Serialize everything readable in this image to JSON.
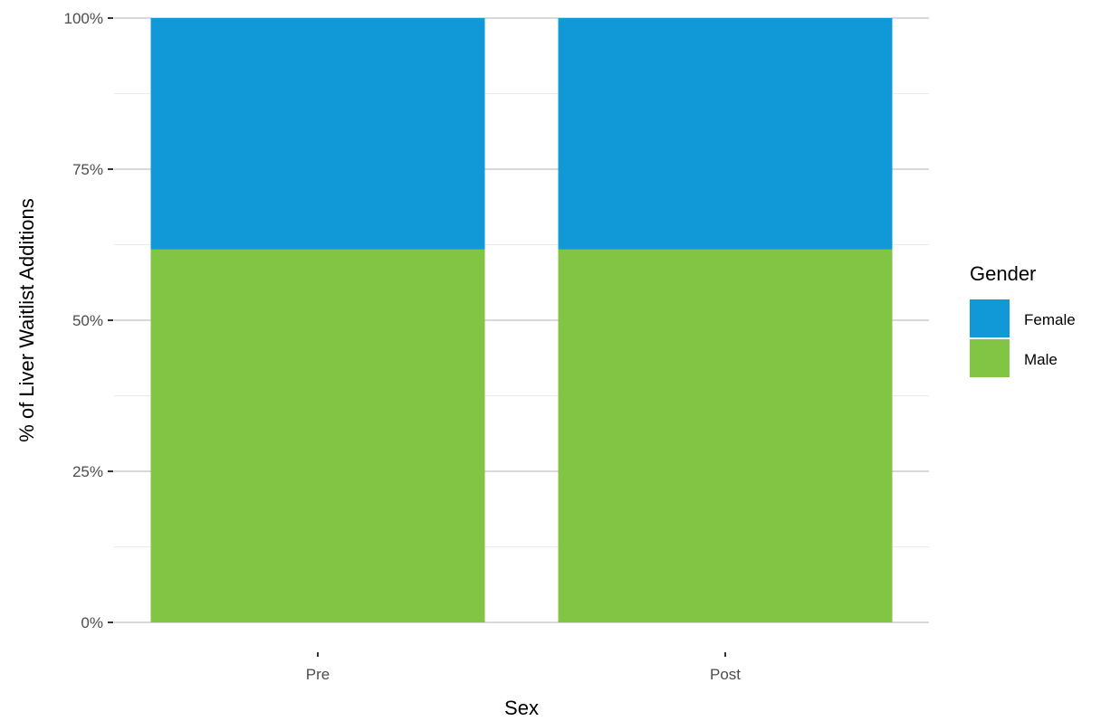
{
  "chart_data": {
    "type": "bar",
    "stacked": true,
    "categories": [
      "Pre",
      "Post"
    ],
    "series": [
      {
        "name": "Female",
        "color": "#1199d7",
        "values": [
          0.383,
          0.383
        ]
      },
      {
        "name": "Male",
        "color": "#82c443",
        "values": [
          0.617,
          0.617
        ]
      }
    ],
    "xlabel": "Sex",
    "ylabel": "% of Liver Waitlist Additions",
    "ylim": [
      0,
      1
    ],
    "y_ticks": [
      {
        "value": 0,
        "label": "0%"
      },
      {
        "value": 0.25,
        "label": "25%"
      },
      {
        "value": 0.5,
        "label": "50%"
      },
      {
        "value": 0.75,
        "label": "75%"
      },
      {
        "value": 1,
        "label": "100%"
      }
    ],
    "legend": {
      "title": "Gender",
      "position": "right",
      "entries": [
        "Female",
        "Male"
      ]
    },
    "grid": true
  }
}
